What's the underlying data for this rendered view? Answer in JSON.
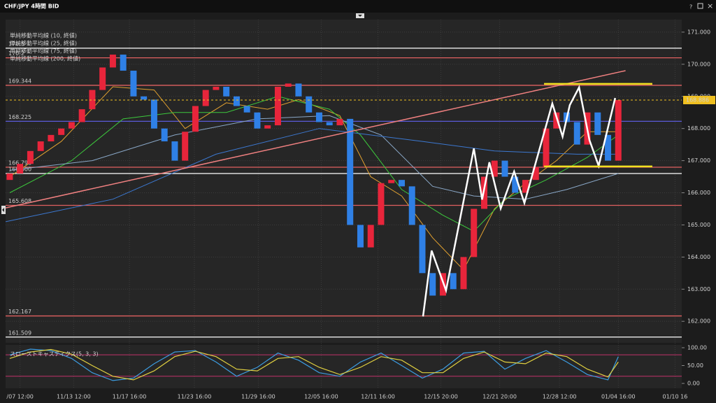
{
  "window": {
    "title": "CHF/JPY 4時間 BID",
    "buttons": [
      "?",
      "×"
    ]
  },
  "chart_data": {
    "type": "candlestick",
    "up_color": "#e8253b",
    "down_color": "#2f80e6",
    "open": [
      166.4,
      166.6,
      166.9,
      167.3,
      167.6,
      167.8,
      168.0,
      168.2,
      168.6,
      169.2,
      169.9,
      170.3,
      169.8,
      169.0,
      168.9,
      168.0,
      167.6,
      167.0,
      167.9,
      168.7,
      169.2,
      169.3,
      169.0,
      168.7,
      168.5,
      168.0,
      168.1,
      169.3,
      169.4,
      169.0,
      168.5,
      168.2,
      168.1,
      168.3,
      165.0,
      164.3,
      165.0,
      166.3,
      166.4,
      166.2,
      165.0,
      163.5,
      162.8,
      163.5,
      163.0,
      164.0,
      165.5,
      166.5,
      167.0,
      166.5,
      166.0,
      166.4,
      166.8,
      168.0,
      168.5,
      168.2,
      167.5,
      168.5,
      167.8,
      167.0
    ],
    "close": [
      166.6,
      166.9,
      167.3,
      167.6,
      167.8,
      168.0,
      168.2,
      168.6,
      169.2,
      169.9,
      170.3,
      169.8,
      169.0,
      168.9,
      168.0,
      167.6,
      167.0,
      167.9,
      168.7,
      169.2,
      169.3,
      169.0,
      168.7,
      168.5,
      168.0,
      168.1,
      169.3,
      169.4,
      169.0,
      168.5,
      168.2,
      168.1,
      168.3,
      165.0,
      164.3,
      165.0,
      166.3,
      166.4,
      166.2,
      165.0,
      163.5,
      162.8,
      163.5,
      163.0,
      164.0,
      165.5,
      166.5,
      167.0,
      166.5,
      166.0,
      166.4,
      166.8,
      168.0,
      168.5,
      168.2,
      167.5,
      168.5,
      167.8,
      167.0,
      168.886
    ],
    "xlim": [
      -0.4,
      65.15
    ],
    "xticks": [
      {
        "value": 1,
        "label": "/07 12:00"
      },
      {
        "value": 6.2,
        "label": "11/13 12:00"
      },
      {
        "value": 11.6,
        "label": "11/17 16:00"
      },
      {
        "value": 17.9,
        "label": "11/23 16:00"
      },
      {
        "value": 24.1,
        "label": "11/29 16:00"
      },
      {
        "value": 30.2,
        "label": "12/05 16:00"
      },
      {
        "value": 35.7,
        "label": "12/11 16:00"
      },
      {
        "value": 41.8,
        "label": "12/15 20:00"
      },
      {
        "value": 47.5,
        "label": "12/21 20:00"
      },
      {
        "value": 53.3,
        "label": "12/28 12:00"
      },
      {
        "value": 59,
        "label": "01/04 16:00"
      },
      {
        "value": 64.5,
        "label": "01/10 16"
      }
    ],
    "ylim": [
      161.33,
      171.39
    ],
    "yticks": [
      {
        "value": 171,
        "label": "171.000"
      },
      {
        "value": 170,
        "label": "170.000"
      },
      {
        "value": 169,
        "label": "169.000"
      },
      {
        "value": 168,
        "label": "168.000"
      },
      {
        "value": 167,
        "label": "167.000"
      },
      {
        "value": 166,
        "label": "166.000"
      },
      {
        "value": 165,
        "label": "165.000"
      },
      {
        "value": 164,
        "label": "164.000"
      },
      {
        "value": 163,
        "label": "163.000"
      },
      {
        "value": 162,
        "label": "162.000"
      }
    ],
    "grid": true,
    "moving_averages": [
      {
        "name": "単純移動平均線 (10, 終値)",
        "color": "#e0a030",
        "x": [
          0,
          5,
          10,
          14,
          17,
          21,
          25,
          28,
          32,
          35,
          38,
          41,
          44,
          47,
          50,
          53,
          56,
          59
        ],
        "values": [
          166.5,
          167.6,
          169.3,
          169.2,
          168.0,
          168.8,
          168.6,
          168.9,
          168.4,
          166.5,
          165.9,
          164.6,
          163.6,
          165.5,
          166.3,
          167.0,
          167.9,
          167.9
        ]
      },
      {
        "name": "単純移動平均線 (25, 終値)",
        "color": "#3cc83c",
        "x": [
          0,
          6,
          11,
          16,
          21,
          26,
          31,
          34,
          38,
          42,
          45,
          48,
          52,
          56,
          59
        ],
        "values": [
          166.0,
          167.0,
          168.3,
          168.5,
          168.5,
          169.0,
          168.6,
          167.8,
          166.1,
          165.3,
          164.8,
          165.8,
          166.4,
          167.1,
          167.8
        ]
      },
      {
        "name": "単純移動平均線 (75, 終値)",
        "color": "#8aa8c8",
        "x": [
          0,
          8,
          16,
          24,
          31,
          36,
          41,
          45,
          50,
          54,
          59
        ],
        "values": [
          166.7,
          167.0,
          167.8,
          168.3,
          168.4,
          167.8,
          166.2,
          165.9,
          165.8,
          166.1,
          166.6
        ]
      },
      {
        "name": "単純移動平均線 (200, 終値)",
        "color": "#3c78d0",
        "x": [
          -0.4,
          10,
          20,
          30,
          40,
          47,
          55,
          59
        ],
        "values": [
          165.1,
          165.8,
          167.2,
          168.0,
          167.6,
          167.3,
          167.2,
          167.2
        ]
      }
    ],
    "levels": [
      {
        "value": 170.5,
        "color": "#ffffff"
      },
      {
        "value": 170.2,
        "color": "#e06060"
      },
      {
        "value": 169.344,
        "color": "#e06060"
      },
      {
        "value": 168.225,
        "color": "#5a5ad8"
      },
      {
        "value": 166.796,
        "color": "#e06060"
      },
      {
        "value": 166.6,
        "label": "166.600",
        "color": "#ffffff"
      },
      {
        "value": 165.608,
        "color": "#e06060"
      },
      {
        "value": 162.167,
        "color": "#e06060"
      },
      {
        "value": 161.509,
        "color": "#ffffff"
      }
    ],
    "last": {
      "value": 168.886,
      "color": "#f0c020"
    },
    "trend_line": {
      "x": [
        -0.4,
        59.7
      ],
      "y": [
        165.53,
        169.8
      ],
      "color": "#f08080"
    },
    "zones": {
      "color": "#f0e020",
      "lines": [
        {
          "x": [
            51.8,
            62.3
          ],
          "y": 169.39
        },
        {
          "x": [
            51.8,
            62.3
          ],
          "y": 166.82
        }
      ]
    },
    "zigzag": {
      "color": "#ffffff",
      "x": [
        40.07,
        40.9,
        42.3,
        45.0,
        45.8,
        46.5,
        47.6,
        48.9,
        49.9,
        52.6,
        53.6,
        54.3,
        55.2,
        56.2,
        57.1,
        58.7
      ],
      "y": [
        162.15,
        164.2,
        162.96,
        167.38,
        165.79,
        166.95,
        165.51,
        166.66,
        165.68,
        168.78,
        167.75,
        168.73,
        169.28,
        167.64,
        166.84,
        168.95
      ]
    },
    "stochastic": {
      "title": "スローストキャスティクス(5, 3, 3)",
      "ylim": [
        -13.7,
        107.8
      ],
      "yticks": [
        {
          "value": 100,
          "label": "100.00"
        },
        {
          "value": 50,
          "label": "50.00"
        },
        {
          "value": 0,
          "label": "0.00"
        }
      ],
      "levels": [
        80,
        20
      ],
      "level_color": "#c0306a",
      "x": [
        0,
        2,
        4,
        6,
        8,
        10,
        12,
        14,
        16,
        18,
        20,
        22,
        24,
        26,
        28,
        30,
        32,
        34,
        36,
        38,
        40,
        42,
        44,
        46,
        48,
        50,
        52,
        54,
        56,
        58,
        59
      ],
      "series": [
        {
          "color": "#3c9ce0",
          "values": [
            80,
            96,
            92,
            70,
            30,
            8,
            15,
            55,
            88,
            92,
            60,
            20,
            45,
            85,
            65,
            30,
            20,
            60,
            85,
            50,
            15,
            40,
            85,
            90,
            40,
            70,
            92,
            60,
            25,
            10,
            75
          ]
        },
        {
          "color": "#e0d040",
          "values": [
            70,
            88,
            95,
            82,
            50,
            20,
            10,
            35,
            75,
            90,
            75,
            40,
            35,
            70,
            75,
            45,
            25,
            45,
            75,
            65,
            30,
            30,
            70,
            88,
            60,
            55,
            85,
            75,
            40,
            18,
            60
          ]
        }
      ]
    }
  }
}
